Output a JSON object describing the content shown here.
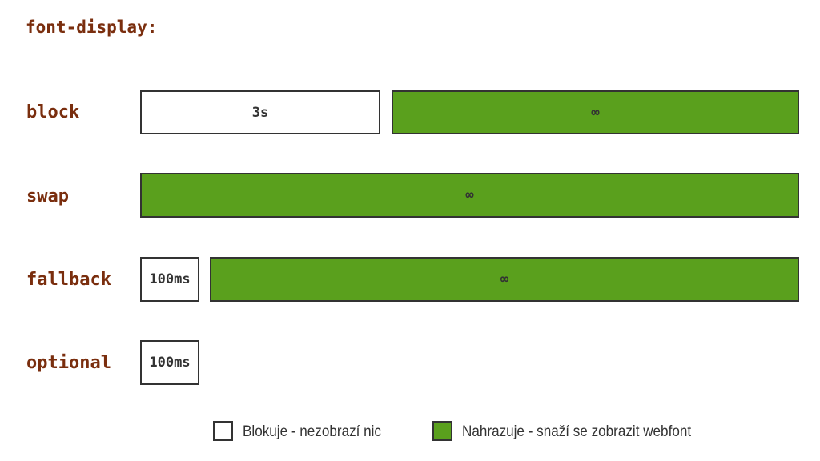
{
  "title": "font-display:",
  "rows": [
    {
      "label": "block",
      "segments": [
        {
          "text": "3s",
          "kind": "block"
        },
        {
          "text": "∞",
          "kind": "swap"
        }
      ]
    },
    {
      "label": "swap",
      "segments": [
        {
          "text": "∞",
          "kind": "swap"
        }
      ]
    },
    {
      "label": "fallback",
      "segments": [
        {
          "text": "100ms",
          "kind": "block"
        },
        {
          "text": "∞",
          "kind": "swap"
        }
      ]
    },
    {
      "label": "optional",
      "segments": [
        {
          "text": "100ms",
          "kind": "block"
        }
      ]
    }
  ],
  "legend": {
    "block_label": "Blokuje - nezobrazí nic",
    "swap_label": "Nahrazuje - snaží se zobrazit webfont"
  },
  "colors": {
    "block_fill": "#ffffff",
    "swap_fill": "#5aa01d",
    "border": "#333333",
    "label_text": "#7a2e0e"
  }
}
